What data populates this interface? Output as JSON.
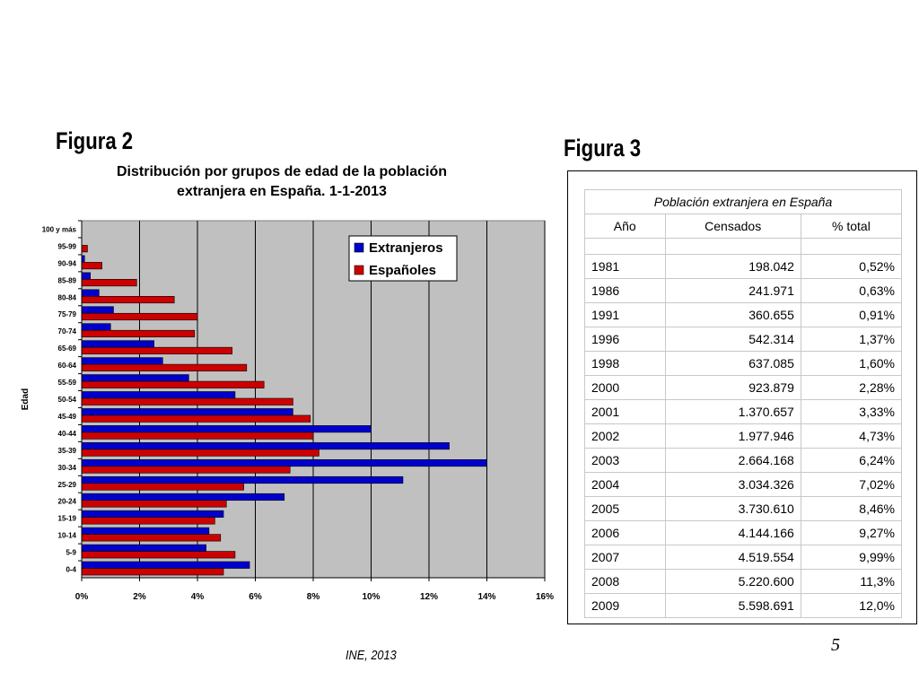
{
  "figure2": {
    "label": "Figura 2",
    "source": "INE, 2013"
  },
  "figure3": {
    "label": "Figura 3",
    "table": {
      "caption": "Población extranjera en España",
      "headers": [
        "Año",
        "Censados",
        "% total"
      ],
      "rows": [
        [
          "1981",
          "198.042",
          "0,52%"
        ],
        [
          "1986",
          "241.971",
          "0,63%"
        ],
        [
          "1991",
          "360.655",
          "0,91%"
        ],
        [
          "1996",
          "542.314",
          "1,37%"
        ],
        [
          "1998",
          "637.085",
          "1,60%"
        ],
        [
          "2000",
          "923.879",
          "2,28%"
        ],
        [
          "2001",
          "1.370.657",
          "3,33%"
        ],
        [
          "2002",
          "1.977.946",
          "4,73%"
        ],
        [
          "2003",
          "2.664.168",
          "6,24%"
        ],
        [
          "2004",
          "3.034.326",
          "7,02%"
        ],
        [
          "2005",
          "3.730.610",
          "8,46%"
        ],
        [
          "2006",
          "4.144.166",
          "9,27%"
        ],
        [
          "2007",
          "4.519.554",
          "9,99%"
        ],
        [
          "2008",
          "5.220.600",
          "11,3%"
        ],
        [
          "2009",
          "5.598.691",
          "12,0%"
        ]
      ]
    }
  },
  "page_number": "5",
  "chart_data": {
    "type": "bar",
    "orientation": "horizontal",
    "title": "Distribución por grupos de edad de la población extranjera en España. 1-1-2013",
    "ylabel": "Edad",
    "xlabel": "",
    "xlim": [
      0,
      16
    ],
    "x_unit": "%",
    "x_ticks": [
      "0%",
      "2%",
      "4%",
      "6%",
      "8%",
      "10%",
      "12%",
      "14%",
      "16%"
    ],
    "grid": "vertical",
    "plot_background": "#c0c0c0",
    "legend_position": "top-right",
    "categories": [
      "0-4",
      "5-9",
      "10-14",
      "15-19",
      "20-24",
      "25-29",
      "30-34",
      "35-39",
      "40-44",
      "45-49",
      "50-54",
      "55-59",
      "60-64",
      "65-69",
      "70-74",
      "75-79",
      "80-84",
      "85-89",
      "90-94",
      "95-99",
      "100 y más"
    ],
    "series": [
      {
        "name": "Extranjeros",
        "color": "#0000cc",
        "values": [
          5.8,
          4.3,
          4.4,
          4.9,
          7.0,
          11.1,
          14.0,
          12.7,
          10.0,
          7.3,
          5.3,
          3.7,
          2.8,
          2.5,
          1.0,
          1.1,
          0.6,
          0.3,
          0.1,
          0.0,
          0.0
        ]
      },
      {
        "name": "Españoles",
        "color": "#cc0000",
        "values": [
          4.9,
          5.3,
          4.8,
          4.6,
          5.0,
          5.6,
          7.2,
          8.2,
          8.0,
          7.9,
          7.3,
          6.3,
          5.7,
          5.2,
          3.9,
          4.0,
          3.2,
          1.9,
          0.7,
          0.2,
          0.0
        ]
      }
    ]
  }
}
